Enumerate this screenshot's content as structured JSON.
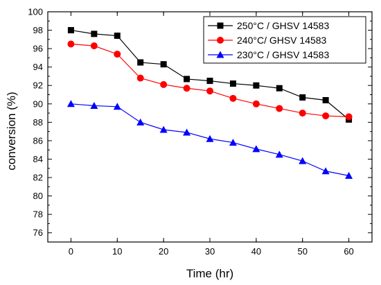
{
  "chart_data": {
    "type": "line",
    "title": "",
    "xlabel": "Time (hr)",
    "ylabel": "conversion (%)",
    "xlim": [
      -5,
      65
    ],
    "ylim": [
      75,
      100
    ],
    "x_ticks": [
      0,
      10,
      20,
      30,
      40,
      50,
      60
    ],
    "y_ticks": [
      76,
      78,
      80,
      82,
      84,
      86,
      88,
      90,
      92,
      94,
      96,
      98,
      100
    ],
    "grid": false,
    "legend_position": "top-right",
    "x": [
      0,
      5,
      10,
      15,
      20,
      25,
      30,
      35,
      40,
      45,
      50,
      55,
      60
    ],
    "series": [
      {
        "name": "250°C / GHSV 14583",
        "color": "#000000",
        "marker": "square",
        "values": [
          98.0,
          97.6,
          97.4,
          94.5,
          94.3,
          92.7,
          92.5,
          92.2,
          92.0,
          91.7,
          90.7,
          90.4,
          88.3
        ]
      },
      {
        "name": "240°C/  GHSV 14583",
        "color": "#ff0000",
        "marker": "circle",
        "values": [
          96.5,
          96.3,
          95.4,
          92.8,
          92.1,
          91.7,
          91.4,
          90.6,
          90.0,
          89.5,
          89.0,
          88.7,
          88.6
        ]
      },
      {
        "name": "230°C / GHSV 14583",
        "color": "#0000ff",
        "marker": "triangle",
        "values": [
          90.0,
          89.8,
          89.7,
          88.0,
          87.2,
          86.9,
          86.2,
          85.8,
          85.1,
          84.5,
          83.8,
          82.7,
          82.2
        ]
      }
    ]
  }
}
